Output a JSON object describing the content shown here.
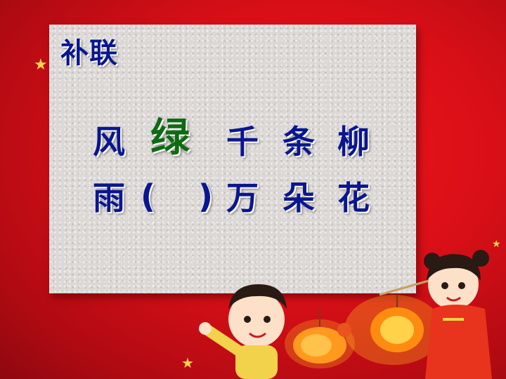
{
  "title": "补联",
  "line1": {
    "c1": "风",
    "c2": "绿",
    "c3": "千",
    "c4": "条",
    "c5": "柳"
  },
  "line2": {
    "c1": "雨",
    "c2": "(",
    "c3": ")",
    "c4": "万",
    "c5": "朵",
    "c6": "花"
  },
  "colors": {
    "title": "#0a1690",
    "highlight": "#0d6b12",
    "background": "#d80f17"
  }
}
